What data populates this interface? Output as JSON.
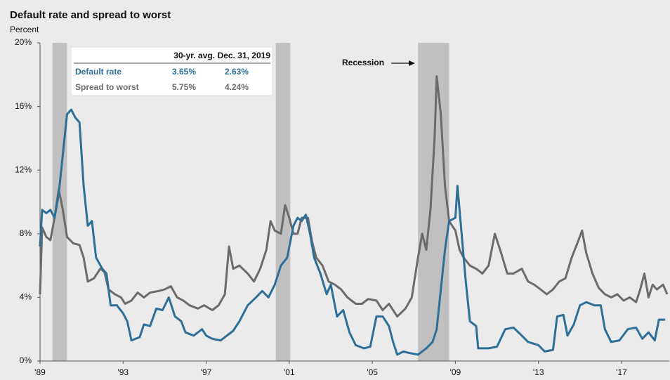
{
  "chart_data": {
    "type": "line",
    "title": "Default rate and spread to worst",
    "y_label": "Percent",
    "annotation": "Recession",
    "xlim": [
      1989,
      2019.3
    ],
    "xticks": [
      {
        "value": 1989,
        "label": "'89"
      },
      {
        "value": 1993,
        "label": "'93"
      },
      {
        "value": 1997,
        "label": "'97"
      },
      {
        "value": 2001,
        "label": "'01"
      },
      {
        "value": 2005,
        "label": "'05"
      },
      {
        "value": 2009,
        "label": "'09"
      },
      {
        "value": 2013,
        "label": "'13"
      },
      {
        "value": 2017,
        "label": "'17"
      }
    ],
    "ylim": [
      0,
      20
    ],
    "yticks": [
      {
        "value": 0,
        "label": "0%"
      },
      {
        "value": 4,
        "label": "4%"
      },
      {
        "value": 8,
        "label": "8%"
      },
      {
        "value": 12,
        "label": "12%"
      },
      {
        "value": 16,
        "label": "16%"
      },
      {
        "value": 20,
        "label": "20%"
      }
    ],
    "grid": false,
    "recession_color": "#c0c0c0",
    "recessions": [
      [
        1989.6,
        1990.3
      ],
      [
        2000.35,
        2001.05
      ],
      [
        2007.2,
        2008.7
      ]
    ],
    "series": [
      {
        "name": "Default rate",
        "color": "#2e6f98",
        "x": [
          1989.0,
          1989.1,
          1989.3,
          1989.5,
          1989.7,
          1989.9,
          1990.1,
          1990.3,
          1990.5,
          1990.7,
          1990.9,
          1991.1,
          1991.3,
          1991.5,
          1991.7,
          1992.0,
          1992.2,
          1992.4,
          1992.7,
          1993.0,
          1993.2,
          1993.4,
          1993.8,
          1994.0,
          1994.3,
          1994.6,
          1994.9,
          1995.2,
          1995.5,
          1995.8,
          1996.0,
          1996.4,
          1996.8,
          1997.0,
          1997.3,
          1997.7,
          1998.0,
          1998.3,
          1998.6,
          1999.0,
          1999.4,
          1999.7,
          2000.0,
          2000.3,
          2000.6,
          2000.9,
          2001.2,
          2001.4,
          2001.6,
          2001.8,
          2002.0,
          2002.2,
          2002.5,
          2002.8,
          2003.0,
          2003.3,
          2003.6,
          2003.9,
          2004.2,
          2004.6,
          2004.9,
          2005.2,
          2005.5,
          2005.8,
          2006.0,
          2006.2,
          2006.5,
          2006.8,
          2007.2,
          2007.6,
          2007.9,
          2008.1,
          2008.3,
          2008.5,
          2008.7,
          2009.0,
          2009.1,
          2009.3,
          2009.5,
          2009.7,
          2010.0,
          2010.1,
          2010.6,
          2011.0,
          2011.4,
          2011.8,
          2012.2,
          2012.5,
          2013.0,
          2013.3,
          2013.7,
          2013.9,
          2014.2,
          2014.4,
          2014.7,
          2015.0,
          2015.3,
          2015.7,
          2016.0,
          2016.2,
          2016.5,
          2016.9,
          2017.3,
          2017.7,
          2018.0,
          2018.3,
          2018.6,
          2018.8,
          2019.1
        ],
        "values": [
          7.2,
          9.5,
          9.3,
          9.5,
          9.0,
          10.5,
          13,
          15.5,
          15.8,
          15.3,
          15.0,
          11,
          8.5,
          8.8,
          6.5,
          5.8,
          5.5,
          3.5,
          3.5,
          3.0,
          2.5,
          1.3,
          1.5,
          2.3,
          2.2,
          3.3,
          3.2,
          4.0,
          2.8,
          2.5,
          1.8,
          1.6,
          2.0,
          1.6,
          1.4,
          1.3,
          1.6,
          1.9,
          2.5,
          3.5,
          4.0,
          4.4,
          4.0,
          4.8,
          6.0,
          6.5,
          8.5,
          9.0,
          8.8,
          9.2,
          8.0,
          6.5,
          5.5,
          4.2,
          4.8,
          2.8,
          3.2,
          1.8,
          1.0,
          0.8,
          0.9,
          2.8,
          2.8,
          2.2,
          1.2,
          0.4,
          0.6,
          0.5,
          0.4,
          0.8,
          1.2,
          2.0,
          4.5,
          7.0,
          8.8,
          9.0,
          11.0,
          8.0,
          5.0,
          2.5,
          2.2,
          0.8,
          0.8,
          0.9,
          2.0,
          2.1,
          1.6,
          1.2,
          1.0,
          0.6,
          0.7,
          2.8,
          2.9,
          1.6,
          2.3,
          3.5,
          3.7,
          3.5,
          3.5,
          2.0,
          1.2,
          1.3,
          2.0,
          2.1,
          1.4,
          1.8,
          1.3,
          2.6,
          2.6
        ],
        "table": [
          "3.65%",
          "2.63%"
        ]
      },
      {
        "name": "Spread to worst",
        "color": "#6b6b6b",
        "x": [
          1989.0,
          1989.1,
          1989.3,
          1989.5,
          1989.7,
          1989.9,
          1990.1,
          1990.3,
          1990.6,
          1990.9,
          1991.1,
          1991.3,
          1991.6,
          1991.9,
          1992.1,
          1992.3,
          1992.6,
          1992.9,
          1993.1,
          1993.4,
          1993.7,
          1994.0,
          1994.3,
          1994.7,
          1995.0,
          1995.3,
          1995.6,
          1995.9,
          1996.2,
          1996.6,
          1996.9,
          1997.3,
          1997.6,
          1997.9,
          1998.1,
          1998.3,
          1998.6,
          1999.0,
          1999.3,
          1999.6,
          1999.9,
          2000.1,
          2000.3,
          2000.6,
          2000.8,
          2001.0,
          2001.2,
          2001.4,
          2001.6,
          2001.9,
          2002.1,
          2002.3,
          2002.6,
          2002.9,
          2003.2,
          2003.5,
          2003.8,
          2004.2,
          2004.5,
          2004.8,
          2005.2,
          2005.5,
          2005.8,
          2006.2,
          2006.6,
          2006.9,
          2007.2,
          2007.4,
          2007.6,
          2007.8,
          2008.0,
          2008.1,
          2008.3,
          2008.5,
          2008.7,
          2009.0,
          2009.2,
          2009.4,
          2009.7,
          2010.0,
          2010.3,
          2010.6,
          2010.9,
          2011.2,
          2011.5,
          2011.8,
          2012.2,
          2012.5,
          2012.8,
          2013.1,
          2013.4,
          2013.7,
          2014.0,
          2014.3,
          2014.6,
          2014.9,
          2015.1,
          2015.3,
          2015.6,
          2015.9,
          2016.2,
          2016.5,
          2016.8,
          2017.1,
          2017.4,
          2017.7,
          2017.9,
          2018.1,
          2018.3,
          2018.5,
          2018.7,
          2019.0,
          2019.2
        ],
        "values": [
          4.2,
          8.4,
          7.8,
          7.6,
          9.0,
          10.8,
          9.5,
          7.8,
          7.4,
          7.3,
          6.5,
          5.0,
          5.2,
          5.8,
          5.6,
          4.5,
          4.2,
          4.0,
          3.6,
          3.8,
          4.3,
          4.0,
          4.3,
          4.4,
          4.5,
          4.7,
          4.0,
          3.8,
          3.5,
          3.3,
          3.5,
          3.2,
          3.5,
          4.2,
          7.2,
          5.8,
          6.0,
          5.5,
          5.0,
          5.8,
          7.0,
          8.8,
          8.2,
          8.0,
          9.8,
          9.0,
          8.0,
          8.0,
          9.0,
          9.0,
          7.5,
          6.5,
          6.0,
          5.0,
          4.8,
          4.5,
          4.0,
          3.6,
          3.6,
          3.9,
          3.8,
          3.2,
          3.6,
          2.8,
          3.3,
          4.0,
          6.5,
          8.0,
          7.0,
          9.5,
          14.0,
          17.9,
          15.5,
          11.0,
          8.8,
          8.2,
          7.0,
          6.5,
          6.0,
          5.8,
          5.5,
          6.0,
          8.0,
          6.8,
          5.5,
          5.5,
          5.8,
          5.0,
          4.8,
          4.5,
          4.2,
          4.5,
          5.0,
          5.2,
          6.5,
          7.5,
          8.2,
          6.8,
          5.5,
          4.6,
          4.2,
          4.0,
          4.2,
          3.8,
          4.0,
          3.7,
          4.5,
          5.5,
          4.0,
          4.8,
          4.5,
          4.8,
          4.2
        ],
        "table": [
          "5.75%",
          "4.24%"
        ]
      }
    ],
    "table_columns": [
      "30-yr. avg.",
      "Dec. 31, 2019"
    ]
  }
}
